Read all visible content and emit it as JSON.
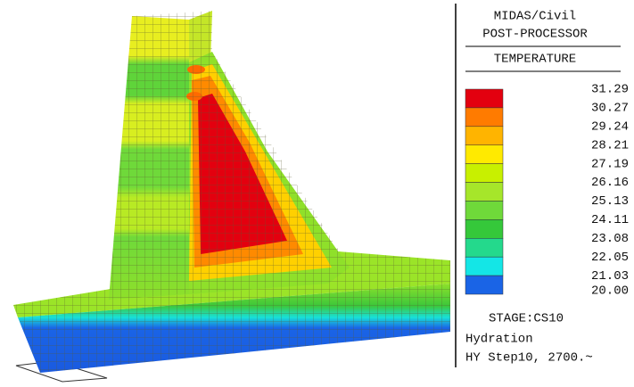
{
  "header": {
    "title": "MIDAS/Civil",
    "subtitle": "POST-PROCESSOR"
  },
  "legend": {
    "title": "TEMPERATURE",
    "labels": [
      "31.29",
      "30.27",
      "29.24",
      "28.21",
      "27.19",
      "26.16",
      "25.13",
      "24.11",
      "23.08",
      "22.05",
      "21.03",
      "20.00"
    ],
    "colors": [
      "#e3000f",
      "#ff7b00",
      "#ffb400",
      "#ffea00",
      "#c8f000",
      "#a6e62a",
      "#6fd93a",
      "#35c83a",
      "#24d98c",
      "#14e6e6",
      "#1a64e6"
    ]
  },
  "footer": {
    "stage": "STAGE:CS10",
    "load": "Hydration",
    "step": "HY Step10, 2700.~"
  }
}
